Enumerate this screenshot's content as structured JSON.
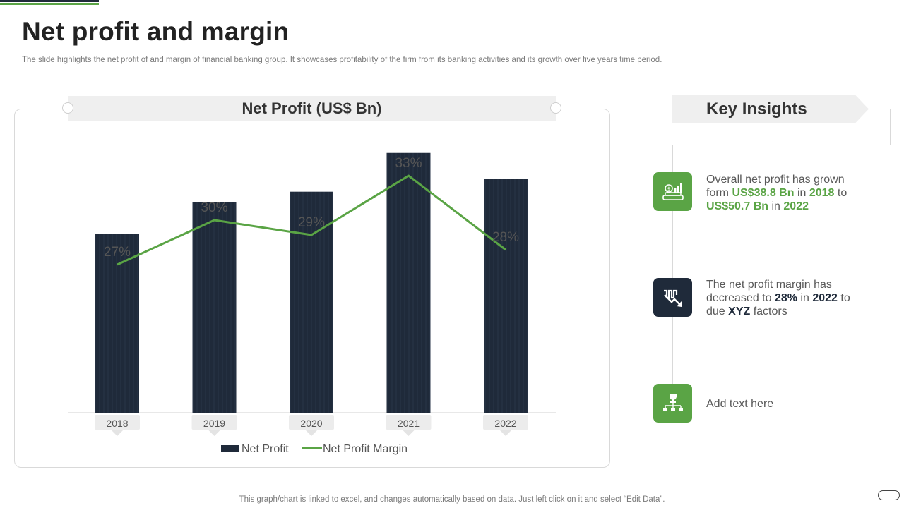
{
  "slide": {
    "title": "Net profit and margin",
    "subtitle": "The slide highlights the net profit of and margin of financial banking group. It showcases profitability of the firm from its banking activities and its growth over five years time period.",
    "footer": "This graph/chart is linked to excel,  and changes automatically based on data. Just left click on it and select “Edit Data”."
  },
  "chart_data": {
    "type": "bar",
    "title": "Net Profit (US$ Bn)",
    "categories": [
      "2018",
      "2019",
      "2020",
      "2021",
      "2022"
    ],
    "series": [
      {
        "name": "Net Profit",
        "type": "bar",
        "color": "#1f2a3a",
        "values": [
          38.8,
          45.6,
          47.9,
          56.3,
          50.7
        ]
      },
      {
        "name": "Net Profit Margin",
        "type": "line",
        "color": "#5aa445",
        "values": [
          27,
          30,
          29,
          33,
          28
        ],
        "labels": [
          "27%",
          "30%",
          "29%",
          "33%",
          "28%"
        ]
      }
    ],
    "ylim": [
      0,
      61
    ],
    "margin_ylim": [
      17,
      36
    ],
    "legend": "bottom-center",
    "grid": false
  },
  "insights": {
    "header": "Key Insights",
    "items": [
      {
        "icon": "money-growth-icon",
        "color": "#5aa445",
        "t1": "Overall net profit has grown form ",
        "v1": "US$38.8 Bn",
        "t2": " in ",
        "v2": "2018",
        "t3": " to ",
        "v3": "US$50.7 Bn",
        "t4": " in ",
        "v4": "2022"
      },
      {
        "icon": "decline-chart-icon",
        "color": "#1f2a3a",
        "t1": "The net profit margin has decreased to ",
        "v1": "28%",
        "t2": " in ",
        "v2": "2022",
        "t3": " to due ",
        "v3": "XYZ",
        "t4": " factors"
      },
      {
        "icon": "trophy-hierarchy-icon",
        "color": "#5aa445",
        "text": "Add text here"
      }
    ]
  }
}
